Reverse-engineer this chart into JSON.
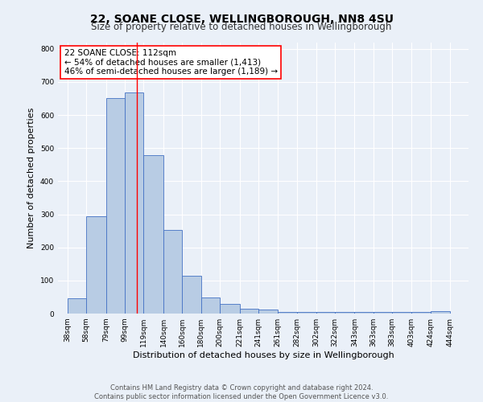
{
  "title": "22, SOANE CLOSE, WELLINGBOROUGH, NN8 4SU",
  "subtitle": "Size of property relative to detached houses in Wellingborough",
  "xlabel": "Distribution of detached houses by size in Wellingborough",
  "ylabel": "Number of detached properties",
  "bar_left_edges": [
    38,
    58,
    79,
    99,
    119,
    140,
    160,
    180,
    200,
    221,
    241,
    261,
    282,
    302,
    322,
    343,
    363,
    383,
    403,
    424
  ],
  "bar_widths": [
    20,
    21,
    20,
    20,
    21,
    20,
    20,
    20,
    21,
    20,
    20,
    21,
    20,
    20,
    21,
    20,
    20,
    20,
    21,
    20
  ],
  "bar_heights": [
    47,
    294,
    652,
    669,
    479,
    253,
    114,
    48,
    28,
    15,
    13,
    4,
    4,
    4,
    4,
    4,
    4,
    4,
    4,
    8
  ],
  "bar_color": "#b8cce4",
  "bar_edge_color": "#4472c4",
  "vline_x": 112,
  "vline_color": "red",
  "xlim": [
    28,
    464
  ],
  "ylim": [
    0,
    820
  ],
  "yticks": [
    0,
    100,
    200,
    300,
    400,
    500,
    600,
    700,
    800
  ],
  "xtick_labels": [
    "38sqm",
    "58sqm",
    "79sqm",
    "99sqm",
    "119sqm",
    "140sqm",
    "160sqm",
    "180sqm",
    "200sqm",
    "221sqm",
    "241sqm",
    "261sqm",
    "282sqm",
    "302sqm",
    "322sqm",
    "343sqm",
    "363sqm",
    "383sqm",
    "403sqm",
    "424sqm",
    "444sqm"
  ],
  "xtick_positions": [
    38,
    58,
    79,
    99,
    119,
    140,
    160,
    180,
    200,
    221,
    241,
    261,
    282,
    302,
    322,
    343,
    363,
    383,
    403,
    424,
    444
  ],
  "annotation_title": "22 SOANE CLOSE: 112sqm",
  "annotation_line1": "← 54% of detached houses are smaller (1,413)",
  "annotation_line2": "46% of semi-detached houses are larger (1,189) →",
  "footer_line1": "Contains HM Land Registry data © Crown copyright and database right 2024.",
  "footer_line2": "Contains public sector information licensed under the Open Government Licence v3.0.",
  "bg_color": "#eaf0f8",
  "plot_bg_color": "#eaf0f8",
  "grid_color": "white",
  "title_fontsize": 10,
  "subtitle_fontsize": 8.5,
  "axis_label_fontsize": 8,
  "tick_fontsize": 6.5,
  "annotation_fontsize": 7.5,
  "footer_fontsize": 6
}
